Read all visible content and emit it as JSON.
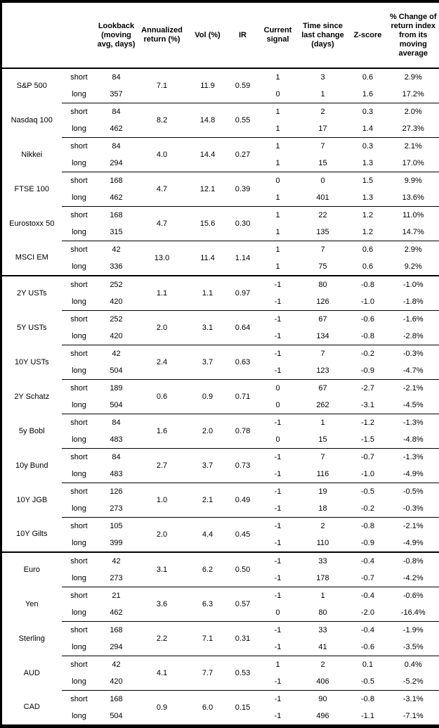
{
  "table": {
    "column_headers": [
      "Lookback (moving avg, days)",
      "Annualized return (%)",
      "Vol (%)",
      "IR",
      "Current signal",
      "Time since last change (days)",
      "Z-score",
      "% Change of return index from its moving average"
    ],
    "sections": [
      {
        "groups": [
          {
            "name": "S&P 500",
            "annualized_return": "7.1",
            "vol": "11.9",
            "ir": "0.59",
            "rows": [
              {
                "horizon": "short",
                "lookback": "84",
                "signal": "1",
                "time_since": "3",
                "z_score": "0.6",
                "pct_change": "2.9%"
              },
              {
                "horizon": "long",
                "lookback": "357",
                "signal": "0",
                "time_since": "1",
                "z_score": "1.6",
                "pct_change": "17.2%"
              }
            ]
          },
          {
            "name": "Nasdaq 100",
            "annualized_return": "8.2",
            "vol": "14.8",
            "ir": "0.55",
            "rows": [
              {
                "horizon": "short",
                "lookback": "84",
                "signal": "1",
                "time_since": "2",
                "z_score": "0.3",
                "pct_change": "2.0%"
              },
              {
                "horizon": "long",
                "lookback": "462",
                "signal": "1",
                "time_since": "17",
                "z_score": "1.4",
                "pct_change": "27.3%"
              }
            ]
          },
          {
            "name": "Nikkei",
            "annualized_return": "4.0",
            "vol": "14.4",
            "ir": "0.27",
            "rows": [
              {
                "horizon": "short",
                "lookback": "84",
                "signal": "1",
                "time_since": "7",
                "z_score": "0.3",
                "pct_change": "2.1%"
              },
              {
                "horizon": "long",
                "lookback": "294",
                "signal": "1",
                "time_since": "15",
                "z_score": "1.3",
                "pct_change": "17.0%"
              }
            ]
          },
          {
            "name": "FTSE 100",
            "annualized_return": "4.7",
            "vol": "12.1",
            "ir": "0.39",
            "rows": [
              {
                "horizon": "short",
                "lookback": "168",
                "signal": "0",
                "time_since": "0",
                "z_score": "1.5",
                "pct_change": "9.9%"
              },
              {
                "horizon": "long",
                "lookback": "462",
                "signal": "1",
                "time_since": "401",
                "z_score": "1.3",
                "pct_change": "13.6%"
              }
            ]
          },
          {
            "name": "Eurostoxx 50",
            "annualized_return": "4.7",
            "vol": "15.6",
            "ir": "0.30",
            "rows": [
              {
                "horizon": "short",
                "lookback": "168",
                "signal": "1",
                "time_since": "22",
                "z_score": "1.2",
                "pct_change": "11.0%"
              },
              {
                "horizon": "long",
                "lookback": "315",
                "signal": "1",
                "time_since": "135",
                "z_score": "1.2",
                "pct_change": "14.7%"
              }
            ]
          },
          {
            "name": "MSCI EM",
            "annualized_return": "13.0",
            "vol": "11.4",
            "ir": "1.14",
            "rows": [
              {
                "horizon": "short",
                "lookback": "42",
                "signal": "1",
                "time_since": "7",
                "z_score": "0.6",
                "pct_change": "2.9%"
              },
              {
                "horizon": "long",
                "lookback": "336",
                "signal": "1",
                "time_since": "75",
                "z_score": "0.6",
                "pct_change": "9.2%"
              }
            ]
          }
        ]
      },
      {
        "groups": [
          {
            "name": "2Y USTs",
            "annualized_return": "1.1",
            "vol": "1.1",
            "ir": "0.97",
            "rows": [
              {
                "horizon": "short",
                "lookback": "252",
                "signal": "-1",
                "time_since": "80",
                "z_score": "-0.8",
                "pct_change": "-1.0%"
              },
              {
                "horizon": "long",
                "lookback": "420",
                "signal": "-1",
                "time_since": "126",
                "z_score": "-1.0",
                "pct_change": "-1.8%"
              }
            ]
          },
          {
            "name": "5Y USTs",
            "annualized_return": "2.0",
            "vol": "3.1",
            "ir": "0.64",
            "rows": [
              {
                "horizon": "short",
                "lookback": "252",
                "signal": "-1",
                "time_since": "67",
                "z_score": "-0.6",
                "pct_change": "-1.6%"
              },
              {
                "horizon": "long",
                "lookback": "420",
                "signal": "-1",
                "time_since": "134",
                "z_score": "-0.8",
                "pct_change": "-2.8%"
              }
            ]
          },
          {
            "name": "10Y USTs",
            "annualized_return": "2.4",
            "vol": "3.7",
            "ir": "0.63",
            "rows": [
              {
                "horizon": "short",
                "lookback": "42",
                "signal": "-1",
                "time_since": "7",
                "z_score": "-0.2",
                "pct_change": "-0.3%"
              },
              {
                "horizon": "long",
                "lookback": "504",
                "signal": "-1",
                "time_since": "123",
                "z_score": "-0.9",
                "pct_change": "-4.7%"
              }
            ]
          },
          {
            "name": "2Y Schatz",
            "annualized_return": "0.6",
            "vol": "0.9",
            "ir": "0.71",
            "rows": [
              {
                "horizon": "short",
                "lookback": "189",
                "signal": "0",
                "time_since": "67",
                "z_score": "-2.7",
                "pct_change": "-2.1%"
              },
              {
                "horizon": "long",
                "lookback": "504",
                "signal": "0",
                "time_since": "262",
                "z_score": "-3.1",
                "pct_change": "-4.5%"
              }
            ]
          },
          {
            "name": "5y Bobl",
            "annualized_return": "1.6",
            "vol": "2.0",
            "ir": "0.78",
            "rows": [
              {
                "horizon": "short",
                "lookback": "84",
                "signal": "-1",
                "time_since": "1",
                "z_score": "-1.2",
                "pct_change": "-1.3%"
              },
              {
                "horizon": "long",
                "lookback": "483",
                "signal": "0",
                "time_since": "15",
                "z_score": "-1.5",
                "pct_change": "-4.8%"
              }
            ]
          },
          {
            "name": "10y Bund",
            "annualized_return": "2.7",
            "vol": "3.7",
            "ir": "0.73",
            "rows": [
              {
                "horizon": "short",
                "lookback": "84",
                "signal": "-1",
                "time_since": "7",
                "z_score": "-0.7",
                "pct_change": "-1.3%"
              },
              {
                "horizon": "long",
                "lookback": "483",
                "signal": "-1",
                "time_since": "116",
                "z_score": "-1.0",
                "pct_change": "-4.9%"
              }
            ]
          },
          {
            "name": "10Y JGB",
            "annualized_return": "1.0",
            "vol": "2.1",
            "ir": "0.49",
            "rows": [
              {
                "horizon": "short",
                "lookback": "126",
                "signal": "-1",
                "time_since": "19",
                "z_score": "-0.5",
                "pct_change": "-0.5%"
              },
              {
                "horizon": "long",
                "lookback": "273",
                "signal": "-1",
                "time_since": "18",
                "z_score": "-0.2",
                "pct_change": "-0.3%"
              }
            ]
          },
          {
            "name": "10Y Gilts",
            "annualized_return": "2.0",
            "vol": "4.4",
            "ir": "0.45",
            "rows": [
              {
                "horizon": "short",
                "lookback": "105",
                "signal": "-1",
                "time_since": "2",
                "z_score": "-0.8",
                "pct_change": "-2.1%"
              },
              {
                "horizon": "long",
                "lookback": "399",
                "signal": "-1",
                "time_since": "110",
                "z_score": "-0.9",
                "pct_change": "-4.9%"
              }
            ]
          }
        ]
      },
      {
        "groups": [
          {
            "name": "Euro",
            "annualized_return": "3.1",
            "vol": "6.2",
            "ir": "0.50",
            "rows": [
              {
                "horizon": "short",
                "lookback": "42",
                "signal": "-1",
                "time_since": "33",
                "z_score": "-0.4",
                "pct_change": "-0.8%"
              },
              {
                "horizon": "long",
                "lookback": "273",
                "signal": "-1",
                "time_since": "178",
                "z_score": "-0.7",
                "pct_change": "-4.2%"
              }
            ]
          },
          {
            "name": "Yen",
            "annualized_return": "3.6",
            "vol": "6.3",
            "ir": "0.57",
            "rows": [
              {
                "horizon": "short",
                "lookback": "21",
                "signal": "-1",
                "time_since": "1",
                "z_score": "-0.4",
                "pct_change": "-0.6%"
              },
              {
                "horizon": "long",
                "lookback": "462",
                "signal": "0",
                "time_since": "80",
                "z_score": "-2.0",
                "pct_change": "-16.4%"
              }
            ]
          },
          {
            "name": "Sterling",
            "annualized_return": "2.2",
            "vol": "7.1",
            "ir": "0.31",
            "rows": [
              {
                "horizon": "short",
                "lookback": "168",
                "signal": "-1",
                "time_since": "33",
                "z_score": "-0.4",
                "pct_change": "-1.9%"
              },
              {
                "horizon": "long",
                "lookback": "294",
                "signal": "-1",
                "time_since": "41",
                "z_score": "-0.6",
                "pct_change": "-3.5%"
              }
            ]
          },
          {
            "name": "AUD",
            "annualized_return": "4.1",
            "vol": "7.7",
            "ir": "0.53",
            "rows": [
              {
                "horizon": "short",
                "lookback": "42",
                "signal": "1",
                "time_since": "2",
                "z_score": "0.1",
                "pct_change": "0.4%"
              },
              {
                "horizon": "long",
                "lookback": "420",
                "signal": "-1",
                "time_since": "406",
                "z_score": "-0.5",
                "pct_change": "-5.2%"
              }
            ]
          },
          {
            "name": "CAD",
            "annualized_return": "0.9",
            "vol": "6.0",
            "ir": "0.15",
            "rows": [
              {
                "horizon": "short",
                "lookback": "168",
                "signal": "-1",
                "time_since": "90",
                "z_score": "-0.8",
                "pct_change": "-3.1%"
              },
              {
                "horizon": "long",
                "lookback": "504",
                "signal": "-1",
                "time_since": "496",
                "z_score": "-1.1",
                "pct_change": "-7.1%"
              }
            ]
          }
        ]
      }
    ]
  }
}
